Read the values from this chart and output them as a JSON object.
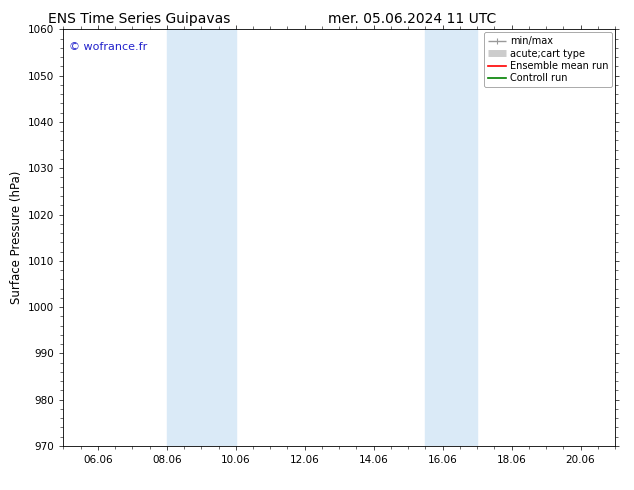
{
  "title_left": "ENS Time Series Guipavas",
  "title_right": "mer. 05.06.2024 11 UTC",
  "ylabel": "Surface Pressure (hPa)",
  "ylim": [
    970,
    1060
  ],
  "yticks": [
    970,
    980,
    990,
    1000,
    1010,
    1020,
    1030,
    1040,
    1050,
    1060
  ],
  "xlim_days": [
    5.0,
    21.0
  ],
  "xtick_labels": [
    "06.06",
    "08.06",
    "10.06",
    "12.06",
    "14.06",
    "16.06",
    "18.06",
    "20.06"
  ],
  "xtick_positions": [
    6,
    8,
    10,
    12,
    14,
    16,
    18,
    20
  ],
  "shaded_bands": [
    {
      "xmin": 8.0,
      "xmax": 10.0
    },
    {
      "xmin": 15.5,
      "xmax": 17.0
    }
  ],
  "shade_color": "#daeaf7",
  "background_color": "#ffffff",
  "watermark_text": "© wofrance.fr",
  "watermark_color": "#2222cc",
  "legend_entries": [
    {
      "label": "min/max",
      "color": "#999999",
      "lw": 1.0
    },
    {
      "label": "acute;cart type",
      "color": "#cccccc",
      "lw": 5
    },
    {
      "label": "Ensemble mean run",
      "color": "#ff0000",
      "lw": 1.2
    },
    {
      "label": "Controll run",
      "color": "#008000",
      "lw": 1.2
    }
  ],
  "title_fontsize": 10,
  "tick_fontsize": 7.5,
  "ylabel_fontsize": 8.5,
  "watermark_fontsize": 8,
  "legend_fontsize": 7
}
